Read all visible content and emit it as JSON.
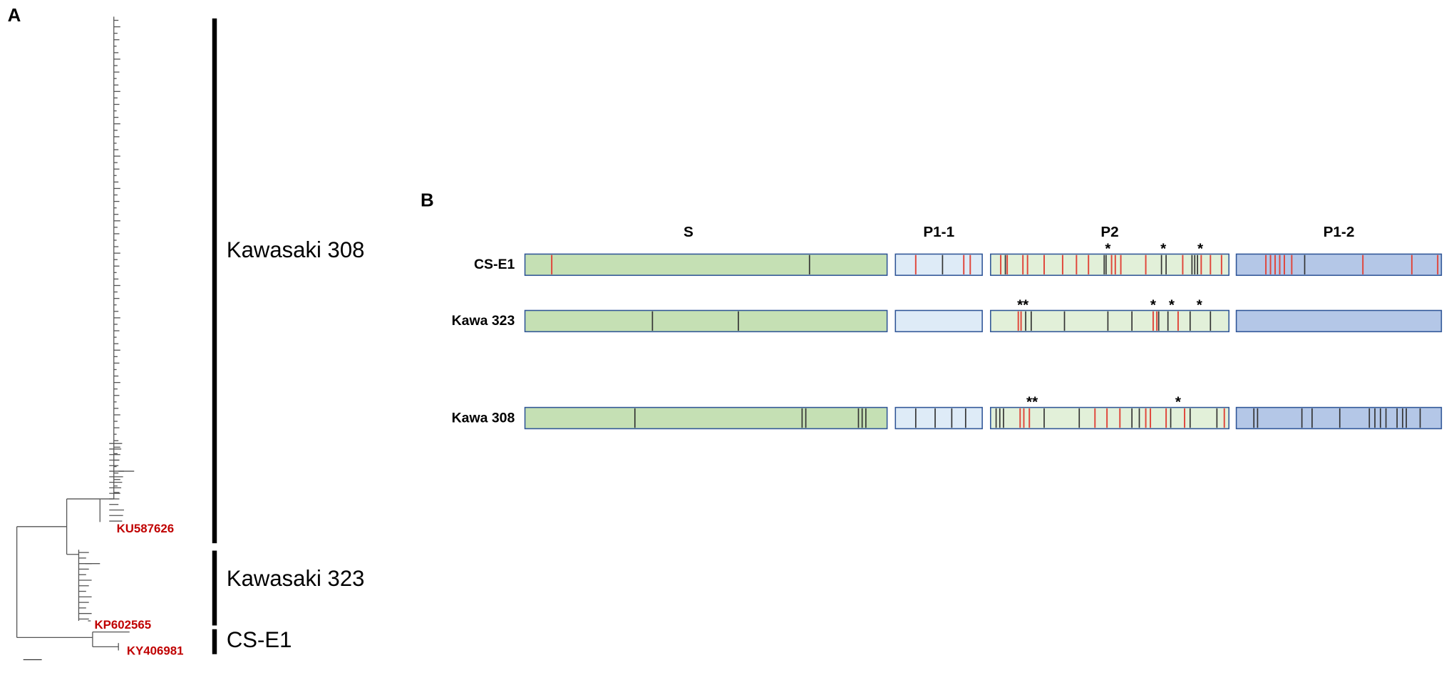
{
  "panel_a": {
    "label": "A",
    "clades": [
      "Kawasaki 308",
      "Kawasaki 323",
      "CS-E1"
    ],
    "accessions": [
      "KU587626",
      "KP602565",
      "KY406981"
    ]
  },
  "panel_b": {
    "label": "B",
    "regions": [
      "S",
      "P1-1",
      "P2",
      "P1-2"
    ],
    "strains": [
      {
        "name": "CS-E1",
        "stars": [
          "*",
          "*",
          "*"
        ]
      },
      {
        "name": "Kawa 323",
        "stars": [
          "**",
          "*",
          "*",
          "*"
        ]
      },
      {
        "name": "Kawa 308",
        "stars": [
          "**",
          "*"
        ]
      }
    ]
  }
}
